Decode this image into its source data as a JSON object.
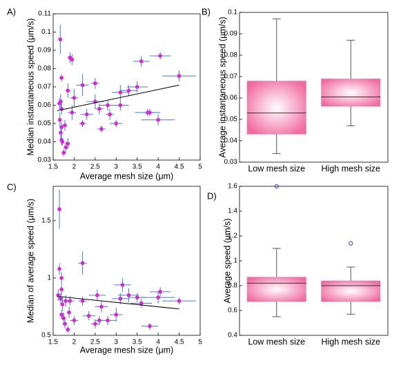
{
  "chart_data": [
    {
      "type": "scatter",
      "panel_label": "A)",
      "xlabel": "Average mesh size (μm)",
      "ylabel": "Median instantaneous speed (μm/s)",
      "xlim": [
        1.5,
        5
      ],
      "ylim": [
        0.03,
        0.11
      ],
      "xticks": [
        1.5,
        2,
        2.5,
        3,
        3.5,
        4,
        4.5,
        5
      ],
      "yticks": [
        0.03,
        0.04,
        0.05,
        0.06,
        0.07,
        0.08,
        0.09,
        0.1,
        0.11
      ],
      "point_color": "#e020e0",
      "error_color": "#3a7ad8",
      "x": [
        1.65,
        1.67,
        1.7,
        1.68,
        1.7,
        1.66,
        1.7,
        1.68,
        1.7,
        1.72,
        1.75,
        1.78,
        1.8,
        1.85,
        1.85,
        1.9,
        1.95,
        2.0,
        1.95,
        2.2,
        2.2,
        2.3,
        2.5,
        2.5,
        2.6,
        2.65,
        2.8,
        2.85,
        3.0,
        3.1,
        3.1,
        3.3,
        3.5,
        3.6,
        3.75,
        3.8,
        4.05,
        4.0,
        4.5
      ],
      "values": [
        0.061,
        0.096,
        0.075,
        0.062,
        0.058,
        0.052,
        0.048,
        0.045,
        0.041,
        0.04,
        0.034,
        0.049,
        0.037,
        0.039,
        0.068,
        0.086,
        0.085,
        0.064,
        0.056,
        0.071,
        0.05,
        0.055,
        0.062,
        0.072,
        0.058,
        0.047,
        0.06,
        0.055,
        0.05,
        0.06,
        0.067,
        0.068,
        0.07,
        0.084,
        0.056,
        0.056,
        0.087,
        0.052,
        0.076
      ],
      "xerr": [
        0.05,
        0.03,
        0.03,
        0.05,
        0.05,
        0.03,
        0.04,
        0.03,
        0.04,
        0.04,
        0.04,
        0.05,
        0.05,
        0.05,
        0.06,
        0.05,
        0.05,
        0.1,
        0.1,
        0.15,
        0.08,
        0.15,
        0.2,
        0.1,
        0.1,
        0.1,
        0.2,
        0.1,
        0.15,
        0.2,
        0.2,
        0.2,
        0.25,
        0.2,
        0.3,
        0.15,
        0.25,
        0.4,
        0.4
      ],
      "yerr": [
        0.003,
        0.008,
        0.002,
        0.004,
        0.003,
        0.004,
        0.003,
        0.003,
        0.003,
        0.002,
        0.002,
        0.003,
        0.003,
        0.003,
        0.004,
        0.003,
        0.003,
        0.005,
        0.004,
        0.006,
        0.002,
        0.003,
        0.004,
        0.003,
        0.003,
        0.002,
        0.003,
        0.003,
        0.002,
        0.003,
        0.004,
        0.003,
        0.003,
        0.003,
        0.002,
        0.002,
        0.002,
        0.003,
        0.003
      ],
      "fit_x": [
        1.6,
        4.5
      ],
      "fit_y": [
        0.057,
        0.071
      ]
    },
    {
      "type": "box",
      "panel_label": "B)",
      "ylabel": "Average instantaneous speed (μm/s)",
      "categories": [
        "Low mesh size",
        "High mesh size"
      ],
      "ylim": [
        0.03,
        0.1
      ],
      "yticks": [
        0.03,
        0.04,
        0.05,
        0.06,
        0.07,
        0.08,
        0.09,
        0.1
      ],
      "box_color": "#f06ca0",
      "whisker_low": [
        0.034,
        0.047
      ],
      "q1": [
        0.043,
        0.056
      ],
      "median": [
        0.053,
        0.0605
      ],
      "q3": [
        0.068,
        0.069
      ],
      "whisker_high": [
        0.097,
        0.087
      ],
      "outliers": [
        [],
        []
      ]
    },
    {
      "type": "scatter",
      "panel_label": "C)",
      "xlabel": "Average mesh size (μm)",
      "ylabel": "Median of average speed (μm/s)",
      "xlim": [
        1.5,
        5
      ],
      "ylim": [
        0.5,
        1.8
      ],
      "xticks": [
        1.5,
        2,
        2.5,
        3,
        3.5,
        4,
        4.5,
        5
      ],
      "yticks": [
        0.5,
        1,
        1.5
      ],
      "point_color": "#e020e0",
      "error_color": "#3a7ad8",
      "x": [
        1.65,
        1.65,
        1.62,
        1.68,
        1.7,
        1.7,
        1.72,
        1.7,
        1.75,
        1.78,
        1.8,
        1.85,
        1.88,
        1.9,
        2.0,
        2.2,
        2.2,
        2.35,
        2.5,
        2.55,
        2.6,
        2.65,
        2.8,
        3.0,
        3.1,
        3.15,
        3.3,
        3.5,
        3.6,
        3.8,
        4.0,
        4.05,
        4.5
      ],
      "values": [
        1.6,
        1.08,
        0.85,
        0.82,
        1.0,
        0.9,
        0.77,
        0.68,
        0.65,
        0.6,
        0.8,
        0.55,
        0.7,
        0.8,
        0.63,
        1.13,
        0.8,
        0.67,
        0.6,
        0.85,
        0.63,
        0.75,
        0.63,
        0.68,
        0.82,
        0.94,
        0.85,
        0.83,
        0.78,
        0.58,
        0.83,
        0.88,
        0.8
      ],
      "xerr": [
        0.03,
        0.03,
        0.05,
        0.05,
        0.03,
        0.03,
        0.05,
        0.03,
        0.05,
        0.05,
        0.1,
        0.05,
        0.05,
        0.1,
        0.1,
        0.1,
        0.1,
        0.15,
        0.1,
        0.2,
        0.1,
        0.15,
        0.2,
        0.15,
        0.2,
        0.2,
        0.25,
        0.2,
        0.25,
        0.2,
        0.4,
        0.25,
        0.4
      ],
      "yerr": [
        0.17,
        0.05,
        0.05,
        0.05,
        0.05,
        0.05,
        0.06,
        0.04,
        0.05,
        0.04,
        0.05,
        0.03,
        0.05,
        0.04,
        0.04,
        0.1,
        0.04,
        0.04,
        0.04,
        0.05,
        0.04,
        0.05,
        0.04,
        0.06,
        0.05,
        0.06,
        0.06,
        0.04,
        0.04,
        0.03,
        0.05,
        0.04,
        0.03
      ],
      "fit_x": [
        1.6,
        4.5
      ],
      "fit_y": [
        0.84,
        0.73
      ]
    },
    {
      "type": "box",
      "panel_label": "D)",
      "ylabel": "Average speed (μm/s)",
      "categories": [
        "Low mesh size",
        "High mesh size"
      ],
      "ylim": [
        0.4,
        1.6
      ],
      "yticks": [
        0.4,
        0.6,
        0.8,
        1,
        1.2,
        1.4,
        1.6
      ],
      "box_color": "#f06ca0",
      "outlier_color": "#3030c0",
      "whisker_low": [
        0.55,
        0.57
      ],
      "q1": [
        0.67,
        0.67
      ],
      "median": [
        0.82,
        0.8
      ],
      "q3": [
        0.87,
        0.84
      ],
      "whisker_high": [
        1.1,
        0.95
      ],
      "outliers": [
        [
          1.6
        ],
        [
          1.14
        ]
      ]
    }
  ]
}
